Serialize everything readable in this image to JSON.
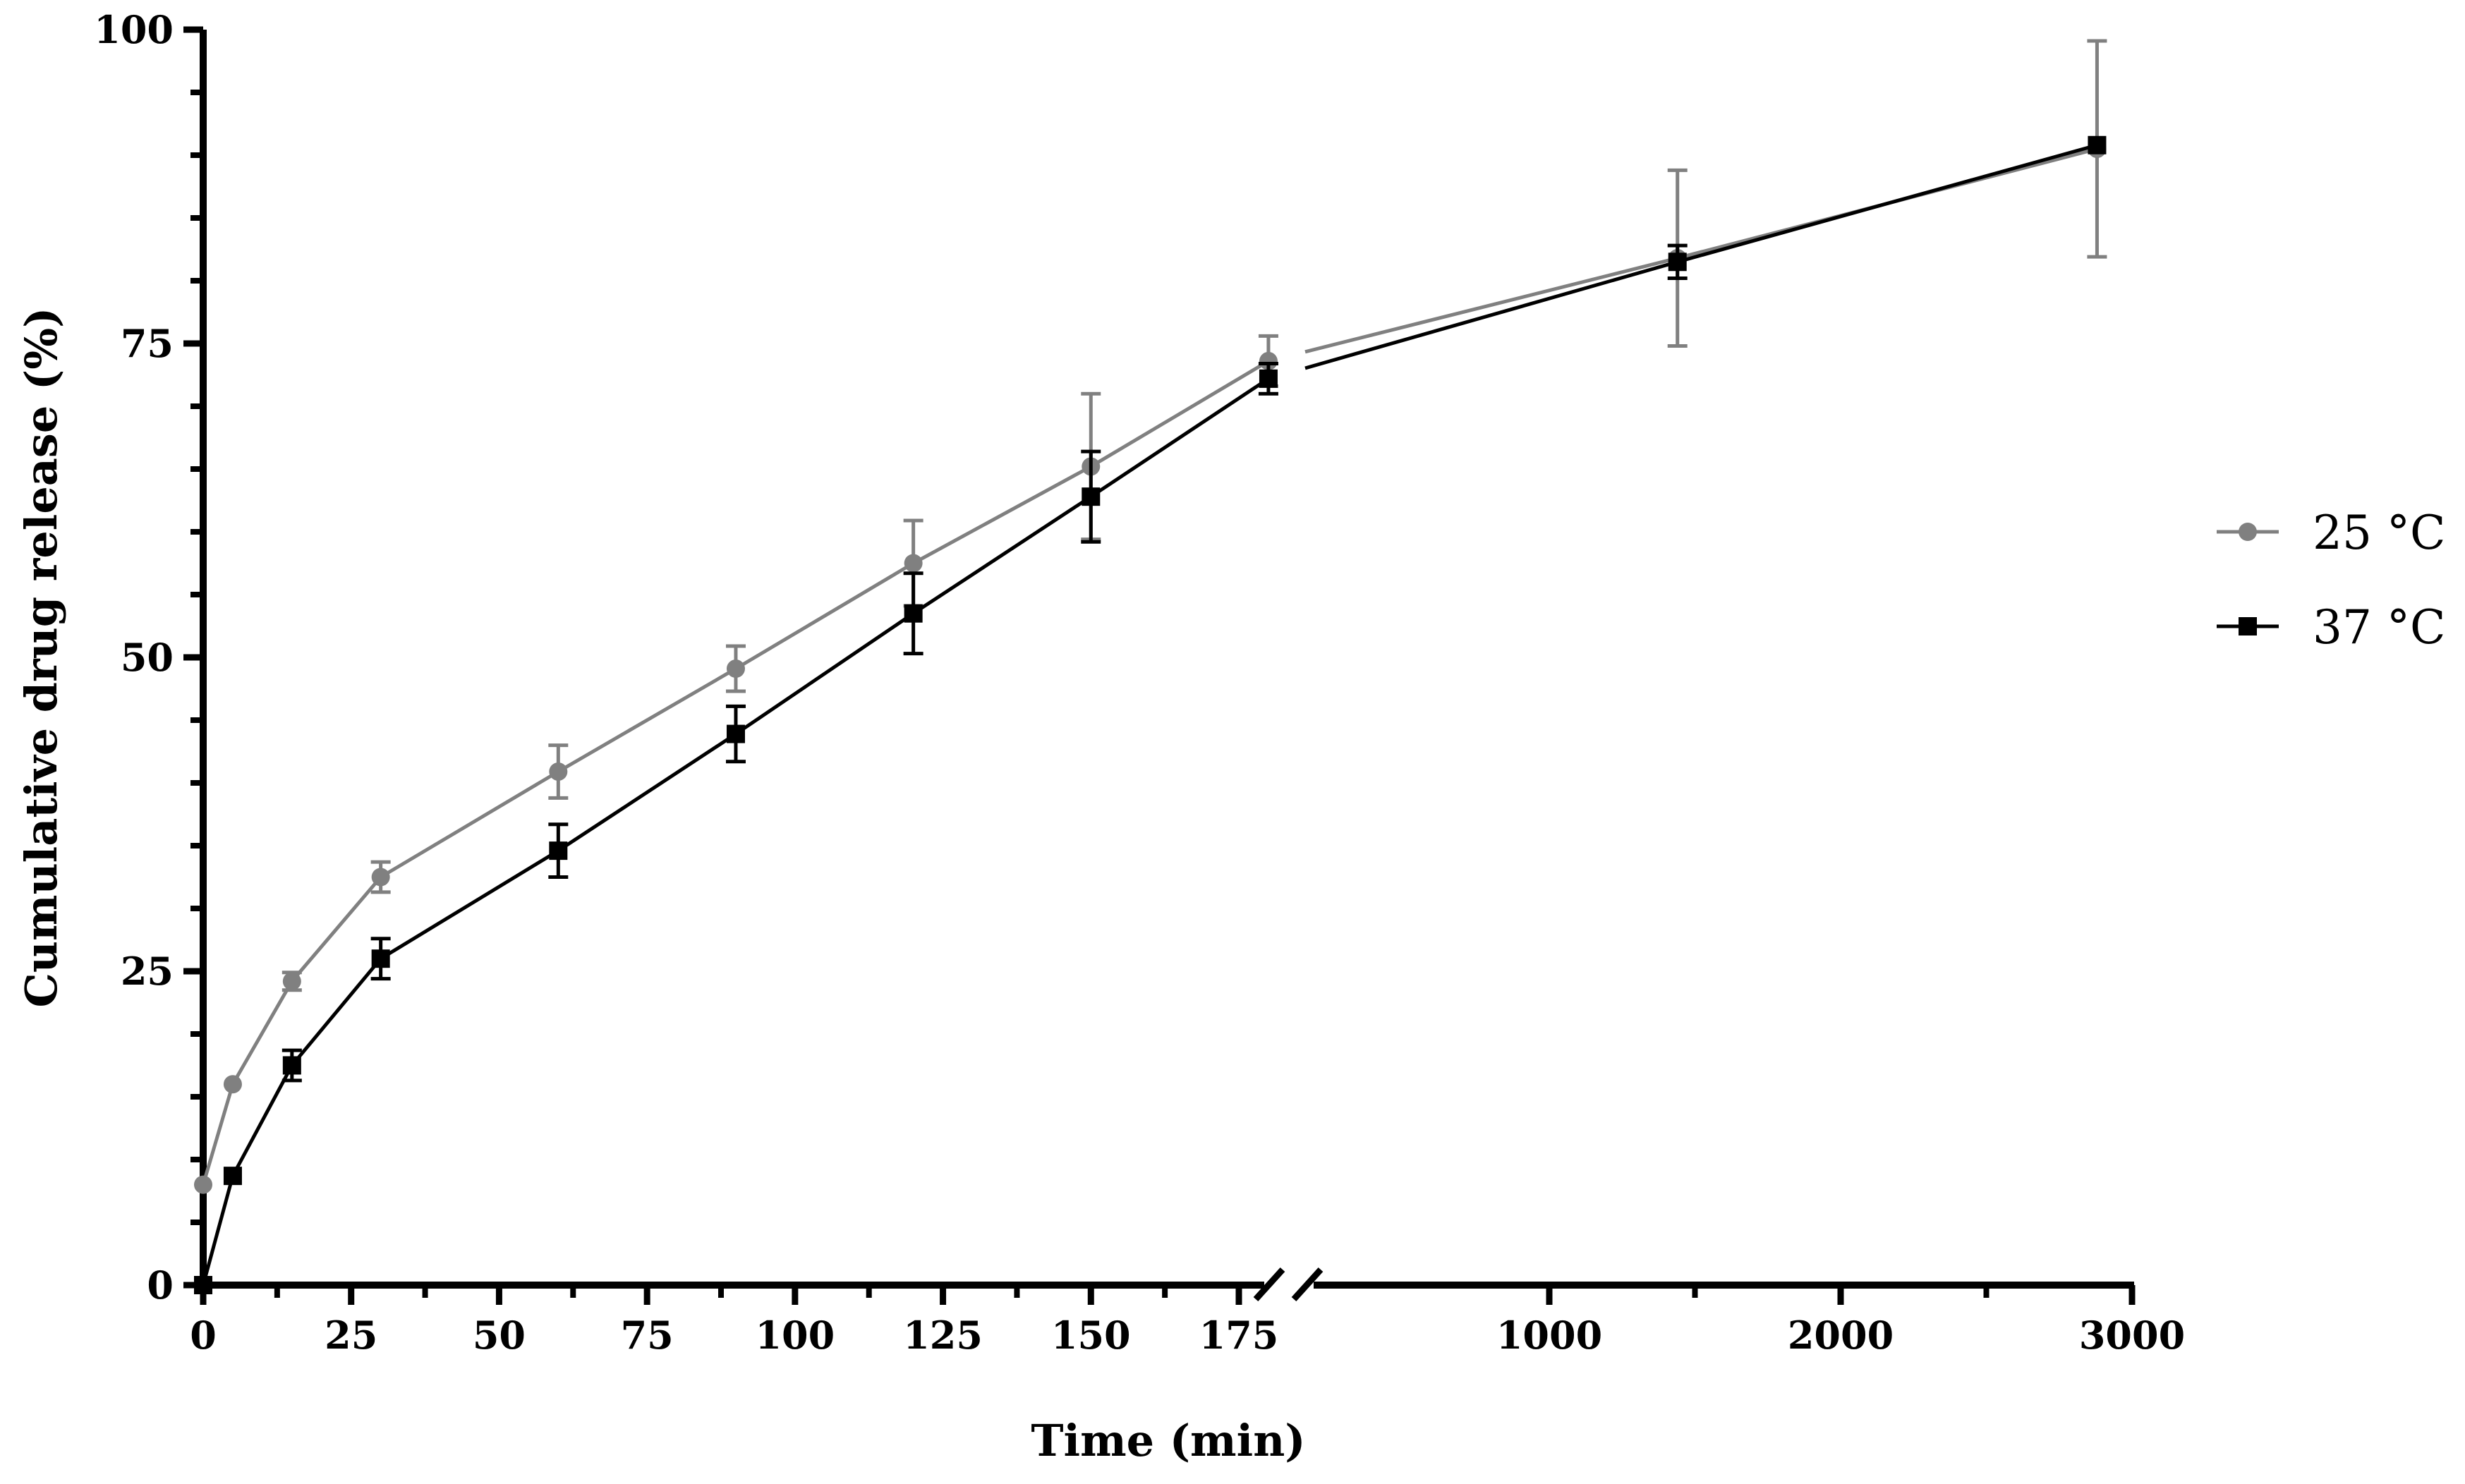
{
  "chart_data": {
    "type": "line",
    "title": "",
    "xlabel": "Time (min)",
    "ylabel": "Cumulative drug release (%)",
    "ylim": [
      0,
      100
    ],
    "y_ticks": [
      0,
      25,
      50,
      75,
      100
    ],
    "y_tick_labels": [
      "0",
      "25",
      "50",
      "75",
      "100"
    ],
    "x_axis_break": true,
    "x_segments": [
      {
        "range": [
          0,
          180
        ],
        "ticks": [
          0,
          25,
          50,
          75,
          100,
          125,
          150,
          175
        ],
        "tick_labels": [
          "0",
          "25",
          "50",
          "75",
          "100",
          "125",
          "150",
          "175"
        ]
      },
      {
        "range": [
          0,
          3000
        ],
        "ticks": [
          1000,
          2000,
          3000
        ],
        "tick_labels": [
          "1000",
          "2000",
          "3000"
        ]
      }
    ],
    "grid": false,
    "legend_position": "right",
    "series": [
      {
        "name": "25 °C",
        "color": "#808080",
        "marker": "circle",
        "x": [
          0,
          5,
          15,
          30,
          60,
          90,
          120,
          150,
          180,
          1440,
          2880
        ],
        "y": [
          8,
          16,
          24.2,
          32.5,
          40.9,
          49.1,
          57.5,
          65.2,
          73.6,
          81.8,
          90.5
        ],
        "error": [
          0,
          0,
          0.7,
          1.2,
          2.1,
          1.8,
          3.4,
          5.8,
          2.0,
          7.0,
          8.6
        ]
      },
      {
        "name": "37 °C",
        "color": "#000000",
        "marker": "square",
        "x": [
          0,
          5,
          15,
          30,
          60,
          90,
          120,
          150,
          180,
          1440,
          2880
        ],
        "y": [
          0,
          8.7,
          17.5,
          26,
          34.6,
          43.9,
          53.5,
          62.8,
          72.2,
          81.5,
          90.8
        ],
        "error": [
          0,
          0,
          1.2,
          1.6,
          2.1,
          2.2,
          3.2,
          3.6,
          1.2,
          1.3,
          0
        ]
      }
    ]
  }
}
